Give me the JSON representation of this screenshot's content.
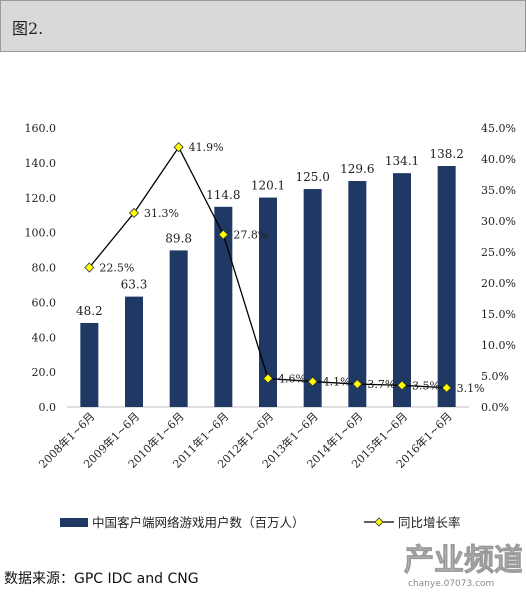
{
  "header": {
    "title": "图2."
  },
  "source": "数据来源：GPC IDC and CNG",
  "watermark": {
    "text": "产业频道",
    "sub": "chanye.07073.com"
  },
  "chart_data": {
    "type": "bar",
    "categories": [
      "2008年1~6月",
      "2009年1~6月",
      "2010年1~6月",
      "2011年1~6月",
      "2012年1~6月",
      "2013年1~6月",
      "2014年1~6月",
      "2015年1~6月",
      "2016年1~6月"
    ],
    "series": [
      {
        "name": "中国客户端网络游戏用户数（百万人）",
        "type": "bar",
        "axis": "left",
        "color": "#1f3864",
        "values": [
          48.2,
          63.3,
          89.8,
          114.8,
          120.1,
          125.0,
          129.6,
          134.1,
          138.2
        ],
        "labels": [
          "48.2",
          "63.3",
          "89.8",
          "114.8",
          "120.1",
          "125.0",
          "129.6",
          "134.1",
          "138.2"
        ]
      },
      {
        "name": "同比增长率",
        "type": "line",
        "axis": "right",
        "color": "#000000",
        "marker_color": "#ffff00",
        "values": [
          22.5,
          31.3,
          41.9,
          27.8,
          4.6,
          4.1,
          3.7,
          3.5,
          3.1
        ],
        "labels": [
          "22.5%",
          "31.3%",
          "41.9%",
          "27.8%",
          "4.6%",
          "4.1%",
          "3.7%",
          "3.5%",
          "3.1%"
        ]
      }
    ],
    "y_left": {
      "min": 0,
      "max": 160,
      "ticks": [
        "0.0",
        "20.0",
        "40.0",
        "60.0",
        "80.0",
        "100.0",
        "120.0",
        "140.0",
        "160.0"
      ]
    },
    "y_right": {
      "min": 0,
      "max": 45,
      "ticks": [
        "0.0%",
        "5.0%",
        "10.0%",
        "15.0%",
        "20.0%",
        "25.0%",
        "30.0%",
        "35.0%",
        "40.0%",
        "45.0%"
      ]
    },
    "grid": false,
    "legend": "bottom"
  }
}
